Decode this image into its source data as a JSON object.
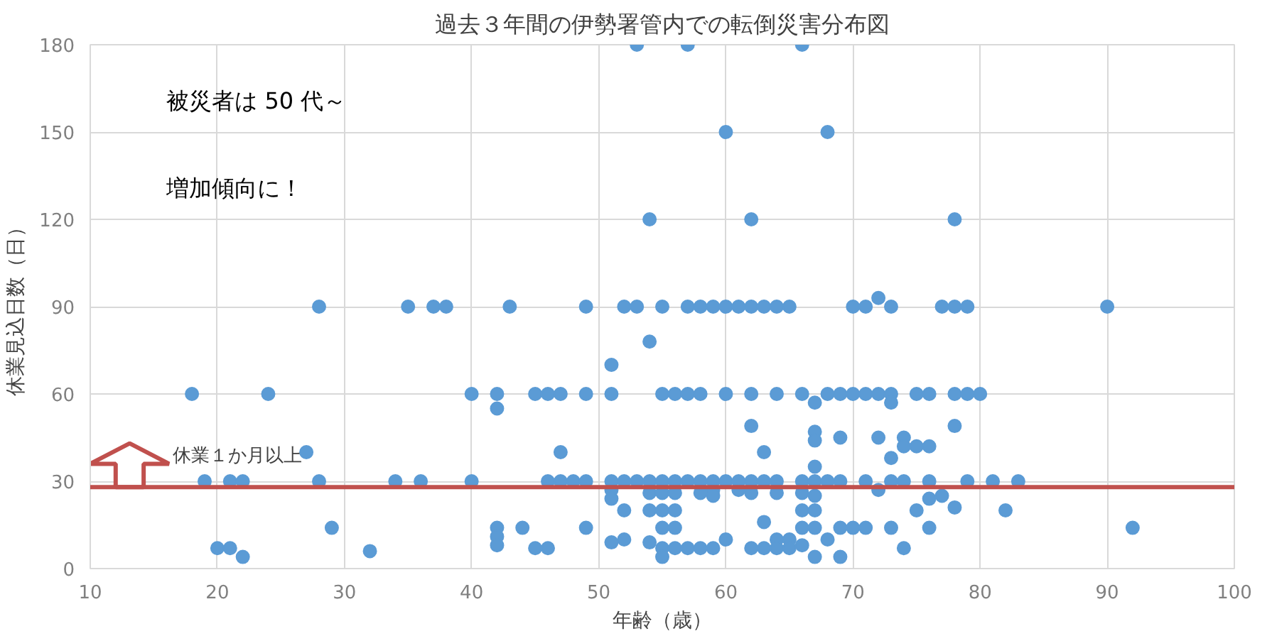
{
  "chart_data": {
    "type": "scatter",
    "title": "過去３年間の伊勢署管内での転倒災害分布図",
    "xlabel": "年齢（歳）",
    "ylabel": "休業見込日数（日）",
    "x": [
      18,
      24,
      28,
      35,
      37,
      38,
      40,
      27,
      19,
      21,
      22,
      28,
      34,
      36,
      40,
      29,
      20,
      21,
      22,
      32,
      53,
      57,
      66,
      60,
      68,
      54,
      62,
      43,
      49,
      52,
      53,
      55,
      57,
      58,
      59,
      60,
      61,
      62,
      63,
      64,
      65,
      70,
      71,
      72,
      73,
      77,
      78,
      79,
      90,
      54,
      51,
      42,
      42,
      45,
      46,
      47,
      49,
      51,
      55,
      56,
      57,
      58,
      60,
      62,
      64,
      66,
      67,
      68,
      69,
      70,
      71,
      72,
      73,
      73,
      75,
      76,
      78,
      79,
      80,
      62,
      47,
      63,
      67,
      67,
      69,
      67,
      72,
      74,
      74,
      75,
      76,
      73,
      78,
      78,
      46,
      47,
      48,
      49,
      51,
      52,
      53,
      54,
      55,
      56,
      57,
      58,
      59,
      60,
      61,
      62,
      63,
      64,
      66,
      67,
      68,
      69,
      71,
      73,
      74,
      76,
      79,
      81,
      83,
      72,
      51,
      59,
      61,
      51,
      52,
      54,
      55,
      56,
      54,
      55,
      56,
      58,
      59,
      62,
      64,
      63,
      66,
      67,
      66,
      67,
      76,
      77,
      75,
      78,
      82,
      42,
      42,
      42,
      44,
      49,
      55,
      56,
      66,
      67,
      69,
      70,
      71,
      73,
      76,
      92,
      51,
      52,
      54,
      60,
      64,
      65,
      68,
      45,
      46,
      55,
      56,
      57,
      58,
      59,
      62,
      63,
      64,
      65,
      66,
      74,
      55,
      67,
      69
    ],
    "values": [
      60,
      60,
      90,
      90,
      90,
      90,
      60,
      40,
      30,
      30,
      30,
      30,
      30,
      30,
      30,
      14,
      7,
      7,
      4,
      6,
      180,
      180,
      180,
      150,
      150,
      120,
      120,
      90,
      90,
      90,
      90,
      90,
      90,
      90,
      90,
      90,
      90,
      90,
      90,
      90,
      90,
      90,
      90,
      93,
      90,
      90,
      90,
      90,
      90,
      78,
      70,
      60,
      55,
      60,
      60,
      60,
      60,
      60,
      60,
      60,
      60,
      60,
      60,
      60,
      60,
      60,
      57,
      60,
      60,
      60,
      60,
      60,
      60,
      57,
      60,
      60,
      60,
      60,
      60,
      49,
      40,
      40,
      47,
      44,
      45,
      35,
      45,
      45,
      42,
      42,
      42,
      38,
      49,
      120,
      30,
      30,
      30,
      30,
      30,
      30,
      30,
      30,
      30,
      30,
      30,
      30,
      30,
      30,
      30,
      30,
      30,
      30,
      30,
      30,
      30,
      30,
      30,
      30,
      30,
      30,
      30,
      30,
      30,
      27,
      27,
      27,
      27,
      24,
      20,
      26,
      26,
      26,
      20,
      20,
      20,
      26,
      25,
      26,
      26,
      16,
      26,
      25,
      20,
      20,
      24,
      25,
      20,
      21,
      20,
      14,
      11,
      8,
      14,
      14,
      14,
      14,
      14,
      14,
      14,
      14,
      14,
      14,
      14,
      14,
      9,
      10,
      9,
      10,
      10,
      10,
      10,
      7,
      7,
      7,
      7,
      7,
      7,
      7,
      7,
      7,
      7,
      7,
      8,
      7,
      4,
      4,
      4
    ],
    "color": "#5b9bd5",
    "marker": "circle",
    "xlim": [
      10,
      100
    ],
    "xticks": [
      10,
      20,
      30,
      40,
      50,
      60,
      70,
      80,
      90,
      100
    ],
    "ylim": [
      0,
      180
    ],
    "yticks": [
      0,
      30,
      60,
      90,
      120,
      150,
      180
    ],
    "grid": true,
    "ref_lines": [
      {
        "axis": "y",
        "value": 28,
        "label": "休業１か月以上",
        "color": "#c0504d"
      }
    ],
    "annotations": [
      "被災者は 50 代～",
      "増加傾向に！"
    ]
  }
}
